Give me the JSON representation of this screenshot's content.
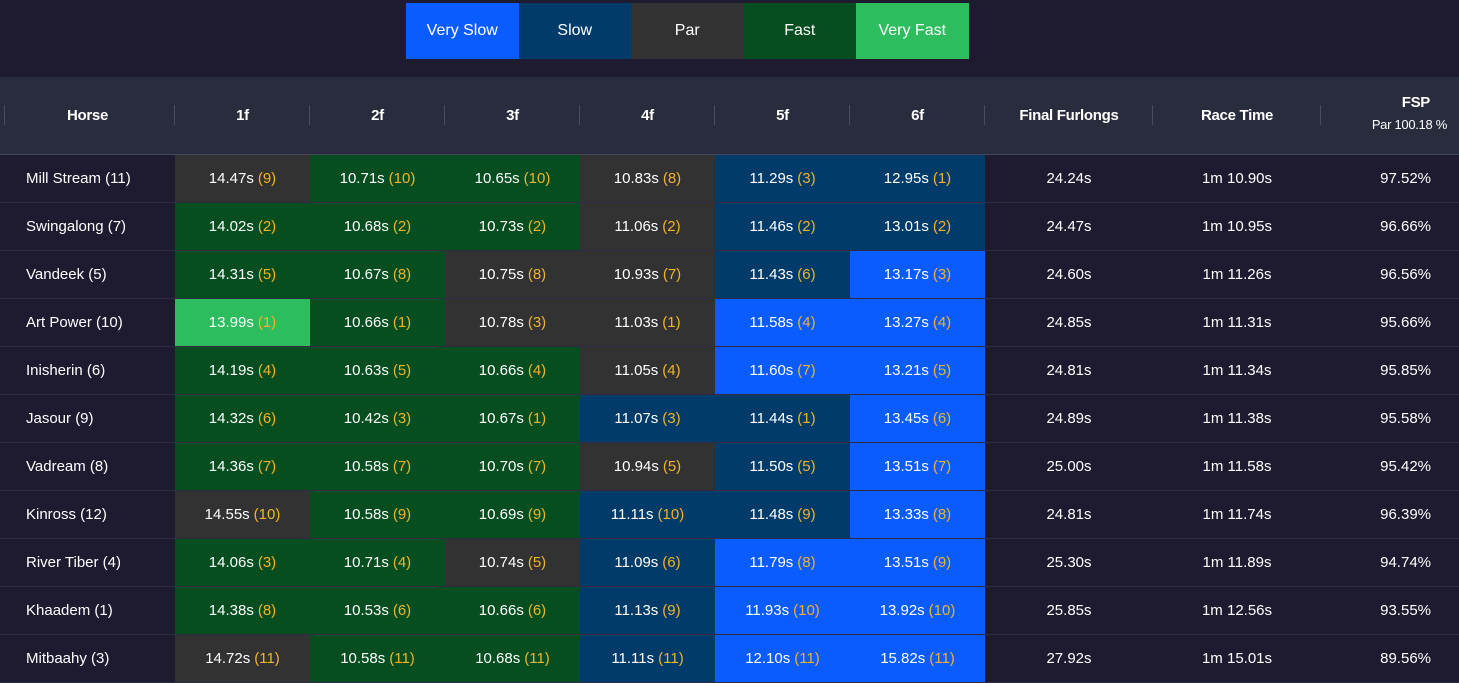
{
  "legend": [
    {
      "label": "Very Slow",
      "color": "#0a5cff"
    },
    {
      "label": "Slow",
      "color": "#013b6a"
    },
    {
      "label": "Par",
      "color": "#323232"
    },
    {
      "label": "Fast",
      "color": "#064e1f"
    },
    {
      "label": "Very Fast",
      "color": "#2ebd5e"
    }
  ],
  "headers": {
    "horse": "Horse",
    "f1": "1f",
    "f2": "2f",
    "f3": "3f",
    "f4": "4f",
    "f5": "5f",
    "f6": "6f",
    "final": "Final Furlongs",
    "race_time": "Race Time",
    "fsp": "FSP",
    "fsp_par": "Par 100.18 %"
  },
  "rows": [
    {
      "horse": "Mill Stream (11)",
      "splits": [
        [
          "14.47s",
          "(9)",
          "p"
        ],
        [
          "10.71s",
          "(10)",
          "f"
        ],
        [
          "10.65s",
          "(10)",
          "f"
        ],
        [
          "10.83s",
          "(8)",
          "p"
        ],
        [
          "11.29s",
          "(3)",
          "s"
        ],
        [
          "12.95s",
          "(1)",
          "s"
        ]
      ],
      "final": "24.24s",
      "race_time": "1m 10.90s",
      "fsp": "97.52%"
    },
    {
      "horse": "Swingalong (7)",
      "splits": [
        [
          "14.02s",
          "(2)",
          "f"
        ],
        [
          "10.68s",
          "(2)",
          "f"
        ],
        [
          "10.73s",
          "(2)",
          "f"
        ],
        [
          "11.06s",
          "(2)",
          "p"
        ],
        [
          "11.46s",
          "(2)",
          "s"
        ],
        [
          "13.01s",
          "(2)",
          "s"
        ]
      ],
      "final": "24.47s",
      "race_time": "1m 10.95s",
      "fsp": "96.66%"
    },
    {
      "horse": "Vandeek (5)",
      "splits": [
        [
          "14.31s",
          "(5)",
          "f"
        ],
        [
          "10.67s",
          "(8)",
          "f"
        ],
        [
          "10.75s",
          "(8)",
          "p"
        ],
        [
          "10.93s",
          "(7)",
          "p"
        ],
        [
          "11.43s",
          "(6)",
          "s"
        ],
        [
          "13.17s",
          "(3)",
          "vs"
        ]
      ],
      "final": "24.60s",
      "race_time": "1m 11.26s",
      "fsp": "96.56%"
    },
    {
      "horse": "Art Power (10)",
      "splits": [
        [
          "13.99s",
          "(1)",
          "vf"
        ],
        [
          "10.66s",
          "(1)",
          "f"
        ],
        [
          "10.78s",
          "(3)",
          "p"
        ],
        [
          "11.03s",
          "(1)",
          "p"
        ],
        [
          "11.58s",
          "(4)",
          "vs"
        ],
        [
          "13.27s",
          "(4)",
          "vs"
        ]
      ],
      "final": "24.85s",
      "race_time": "1m 11.31s",
      "fsp": "95.66%"
    },
    {
      "horse": "Inisherin (6)",
      "splits": [
        [
          "14.19s",
          "(4)",
          "f"
        ],
        [
          "10.63s",
          "(5)",
          "f"
        ],
        [
          "10.66s",
          "(4)",
          "f"
        ],
        [
          "11.05s",
          "(4)",
          "p"
        ],
        [
          "11.60s",
          "(7)",
          "vs"
        ],
        [
          "13.21s",
          "(5)",
          "vs"
        ]
      ],
      "final": "24.81s",
      "race_time": "1m 11.34s",
      "fsp": "95.85%"
    },
    {
      "horse": "Jasour (9)",
      "splits": [
        [
          "14.32s",
          "(6)",
          "f"
        ],
        [
          "10.42s",
          "(3)",
          "f"
        ],
        [
          "10.67s",
          "(1)",
          "f"
        ],
        [
          "11.07s",
          "(3)",
          "s"
        ],
        [
          "11.44s",
          "(1)",
          "s"
        ],
        [
          "13.45s",
          "(6)",
          "vs"
        ]
      ],
      "final": "24.89s",
      "race_time": "1m 11.38s",
      "fsp": "95.58%"
    },
    {
      "horse": "Vadream (8)",
      "splits": [
        [
          "14.36s",
          "(7)",
          "f"
        ],
        [
          "10.58s",
          "(7)",
          "f"
        ],
        [
          "10.70s",
          "(7)",
          "f"
        ],
        [
          "10.94s",
          "(5)",
          "p"
        ],
        [
          "11.50s",
          "(5)",
          "s"
        ],
        [
          "13.51s",
          "(7)",
          "vs"
        ]
      ],
      "final": "25.00s",
      "race_time": "1m 11.58s",
      "fsp": "95.42%"
    },
    {
      "horse": "Kinross (12)",
      "splits": [
        [
          "14.55s",
          "(10)",
          "p"
        ],
        [
          "10.58s",
          "(9)",
          "f"
        ],
        [
          "10.69s",
          "(9)",
          "f"
        ],
        [
          "11.11s",
          "(10)",
          "s"
        ],
        [
          "11.48s",
          "(9)",
          "s"
        ],
        [
          "13.33s",
          "(8)",
          "vs"
        ]
      ],
      "final": "24.81s",
      "race_time": "1m 11.74s",
      "fsp": "96.39%"
    },
    {
      "horse": "River Tiber (4)",
      "splits": [
        [
          "14.06s",
          "(3)",
          "f"
        ],
        [
          "10.71s",
          "(4)",
          "f"
        ],
        [
          "10.74s",
          "(5)",
          "p"
        ],
        [
          "11.09s",
          "(6)",
          "s"
        ],
        [
          "11.79s",
          "(8)",
          "vs"
        ],
        [
          "13.51s",
          "(9)",
          "vs"
        ]
      ],
      "final": "25.30s",
      "race_time": "1m 11.89s",
      "fsp": "94.74%"
    },
    {
      "horse": "Khaadem (1)",
      "splits": [
        [
          "14.38s",
          "(8)",
          "f"
        ],
        [
          "10.53s",
          "(6)",
          "f"
        ],
        [
          "10.66s",
          "(6)",
          "f"
        ],
        [
          "11.13s",
          "(9)",
          "s"
        ],
        [
          "11.93s",
          "(10)",
          "vs"
        ],
        [
          "13.92s",
          "(10)",
          "vs"
        ]
      ],
      "final": "25.85s",
      "race_time": "1m 12.56s",
      "fsp": "93.55%"
    },
    {
      "horse": "Mitbaahy (3)",
      "splits": [
        [
          "14.72s",
          "(11)",
          "p"
        ],
        [
          "10.58s",
          "(11)",
          "f"
        ],
        [
          "10.68s",
          "(11)",
          "f"
        ],
        [
          "11.11s",
          "(11)",
          "s"
        ],
        [
          "12.10s",
          "(11)",
          "vs"
        ],
        [
          "15.82s",
          "(11)",
          "vs"
        ]
      ],
      "final": "27.92s",
      "race_time": "1m 15.01s",
      "fsp": "89.56%"
    }
  ]
}
